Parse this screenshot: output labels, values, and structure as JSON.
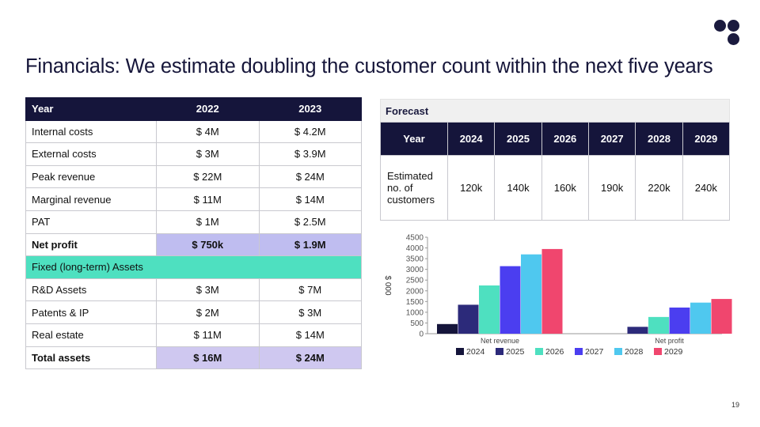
{
  "title": "Financials: We estimate doubling the customer count within the next five years",
  "page_number": "19",
  "financials": {
    "headers": [
      "Year",
      "2022",
      "2023"
    ],
    "rows": [
      {
        "label": "Internal costs",
        "v2022": "$ 4M",
        "v2023": "$ 4.2M"
      },
      {
        "label": "External costs",
        "v2022": "$ 3M",
        "v2023": "$ 3.9M"
      },
      {
        "label": "Peak revenue",
        "v2022": "$ 22M",
        "v2023": "$ 24M"
      },
      {
        "label": "Marginal revenue",
        "v2022": "$ 11M",
        "v2023": "$ 14M"
      },
      {
        "label": "PAT",
        "v2022": "$ 1M",
        "v2023": "$ 2.5M"
      },
      {
        "label": "Net profit",
        "v2022": "$ 750k",
        "v2023": "$ 1.9M"
      },
      {
        "label": "Fixed (long-term) Assets"
      },
      {
        "label": "R&D Assets",
        "v2022": "$ 3M",
        "v2023": "$ 7M"
      },
      {
        "label": "Patents & IP",
        "v2022": "$ 2M",
        "v2023": "$ 3M"
      },
      {
        "label": "Real estate",
        "v2022": "$ 11M",
        "v2023": "$ 14M"
      },
      {
        "label": "Total assets",
        "v2022": "$ 16M",
        "v2023": "$ 24M"
      }
    ]
  },
  "forecast": {
    "heading": "Forecast",
    "year_label": "Year",
    "years": [
      "2024",
      "2025",
      "2026",
      "2027",
      "2028",
      "2029"
    ],
    "row_label": "Estimated no. of customers",
    "values": [
      "120k",
      "140k",
      "160k",
      "190k",
      "220k",
      "240k"
    ]
  },
  "chart_data": {
    "type": "bar",
    "categories": [
      "Net revenue",
      "Net profit"
    ],
    "series": [
      {
        "name": "2024",
        "values": [
          450,
          0
        ],
        "color": "#15153b"
      },
      {
        "name": "2025",
        "values": [
          1350,
          320
        ],
        "color": "#2c2a7a"
      },
      {
        "name": "2026",
        "values": [
          2250,
          780
        ],
        "color": "#4ee0c0"
      },
      {
        "name": "2027",
        "values": [
          3150,
          1220
        ],
        "color": "#4b3ef0"
      },
      {
        "name": "2028",
        "values": [
          3700,
          1450
        ],
        "color": "#4fc8ef"
      },
      {
        "name": "2029",
        "values": [
          3950,
          1620
        ],
        "color": "#f0466e"
      }
    ],
    "yticks": [
      0,
      500,
      1000,
      1500,
      2000,
      2500,
      3000,
      3500,
      4000,
      4500
    ],
    "ylim": [
      0,
      4500
    ],
    "ylabel": "$ 000",
    "xlabel": "",
    "legend": "bottom"
  }
}
